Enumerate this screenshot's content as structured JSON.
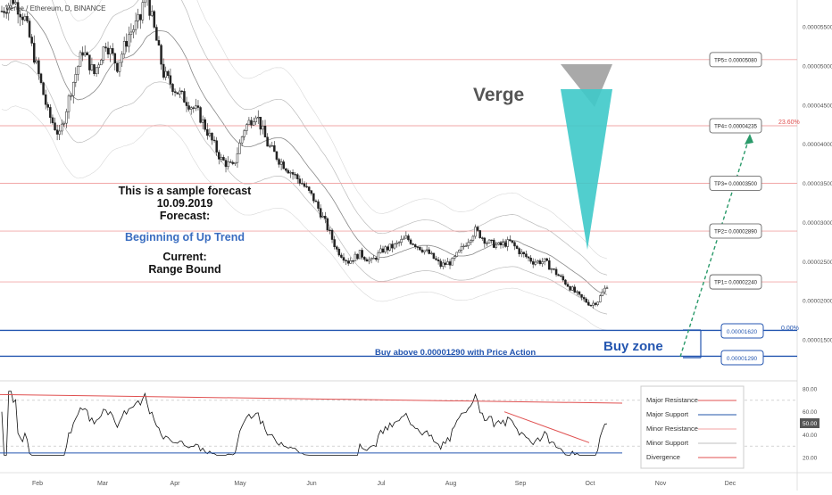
{
  "header": {
    "symbol": "Verge / Ethereum, D, BINANCE"
  },
  "chart_data": {
    "type": "candlestick",
    "symbol": "XVG/ETH",
    "title": "Verge",
    "timeframe": "D",
    "exchange": "BINANCE",
    "y_axis_labels": [
      "0.00005500",
      "0.00005000",
      "0.00004500",
      "0.00004000",
      "0.00003500",
      "0.00003000",
      "0.00002500",
      "0.00002000",
      "0.00001500"
    ],
    "x_axis_labels": [
      "Feb",
      "Mar",
      "Apr",
      "May",
      "Jun",
      "Jul",
      "Aug",
      "Sep",
      "Oct",
      "Nov",
      "Dec"
    ],
    "price_path": [
      [
        0,
        5.7e-05
      ],
      [
        5,
        5.85e-05
      ],
      [
        10,
        5.6e-05
      ],
      [
        15,
        5e-05
      ],
      [
        20,
        4.4e-05
      ],
      [
        25,
        4.1e-05
      ],
      [
        30,
        4.7e-05
      ],
      [
        35,
        5.2e-05
      ],
      [
        40,
        4.9e-05
      ],
      [
        45,
        5.3e-05
      ],
      [
        50,
        5e-05
      ],
      [
        55,
        5.4e-05
      ],
      [
        60,
        5.6e-05
      ],
      [
        62,
        6e-05
      ],
      [
        65,
        5.6e-05
      ],
      [
        70,
        4.9e-05
      ],
      [
        75,
        4.7e-05
      ],
      [
        80,
        4.55e-05
      ],
      [
        85,
        4.4e-05
      ],
      [
        90,
        4.1e-05
      ],
      [
        95,
        3.8e-05
      ],
      [
        100,
        3.7e-05
      ],
      [
        105,
        4.2e-05
      ],
      [
        110,
        4.4e-05
      ],
      [
        115,
        4e-05
      ],
      [
        120,
        3.8e-05
      ],
      [
        125,
        3.65e-05
      ],
      [
        130,
        3.5e-05
      ],
      [
        135,
        3.3e-05
      ],
      [
        140,
        3e-05
      ],
      [
        145,
        2.65e-05
      ],
      [
        150,
        2.5e-05
      ],
      [
        155,
        2.6e-05
      ],
      [
        160,
        2.5e-05
      ],
      [
        165,
        2.65e-05
      ],
      [
        170,
        2.7e-05
      ],
      [
        175,
        2.8e-05
      ],
      [
        180,
        2.7e-05
      ],
      [
        185,
        2.6e-05
      ],
      [
        190,
        2.45e-05
      ],
      [
        195,
        2.5e-05
      ],
      [
        200,
        2.7e-05
      ],
      [
        205,
        2.9e-05
      ],
      [
        210,
        2.75e-05
      ],
      [
        215,
        2.7e-05
      ],
      [
        220,
        2.75e-05
      ],
      [
        225,
        2.6e-05
      ],
      [
        230,
        2.5e-05
      ],
      [
        235,
        2.5e-05
      ],
      [
        240,
        2.35e-05
      ],
      [
        245,
        2.2e-05
      ],
      [
        250,
        2.05e-05
      ],
      [
        255,
        1.95e-05
      ],
      [
        258,
        2e-05
      ],
      [
        262,
        2.2e-05
      ]
    ],
    "levels": {
      "major_support": [
        1.62e-05,
        1.29e-05
      ],
      "resistances": [
        {
          "label": "TP1= 0.00002240",
          "value": 2.24e-05
        },
        {
          "label": "TP2= 0.00002890",
          "value": 2.89e-05
        },
        {
          "label": "TP3= 0.00003500",
          "value": 3.5e-05
        },
        {
          "label": "TP4= 0.00004235",
          "value": 4.235e-05
        },
        {
          "label": "TP5= 0.00005080",
          "value": 5.08e-05
        }
      ],
      "support_labels": [
        "0.00001620",
        "0.00001290"
      ]
    },
    "fib_labels": [
      "23.60%",
      "0.00%"
    ],
    "indicator": {
      "name": "RSI",
      "y_axis_labels": [
        "80.00",
        "60.00",
        "50.00",
        "40.00",
        "20.00"
      ],
      "current_label": "50.00"
    },
    "legend": {
      "placement": "bottom-right",
      "items": [
        {
          "name": "Major Resistance",
          "color": "#e05050"
        },
        {
          "name": "Major Support",
          "color": "#2255aa"
        },
        {
          "name": "Minor Resistance",
          "color": "#f3a0a0"
        },
        {
          "name": "Minor Support",
          "color": "#bfbfbf"
        },
        {
          "name": "Divergence",
          "color": "#e05050"
        }
      ]
    },
    "grid": false
  },
  "annotations": {
    "forecast_line1": "This is a sample forecast",
    "forecast_date": "10.09.2019",
    "forecast_label": "Forecast:",
    "forecast_value": "Beginning of Up Trend",
    "current_label": "Current:",
    "current_value": "Range Bound",
    "buy_zone": "Buy zone",
    "buy_text": "Buy above 0.00001290 with Price Action"
  },
  "colors": {
    "resistance": "#f1a7a7",
    "support": "#2456b0",
    "accent_blue": "#3a6dc0",
    "teal": "#3ec9c9",
    "gray_triangle": "#9a9a9a",
    "arrow_green": "#2a9a6a"
  }
}
